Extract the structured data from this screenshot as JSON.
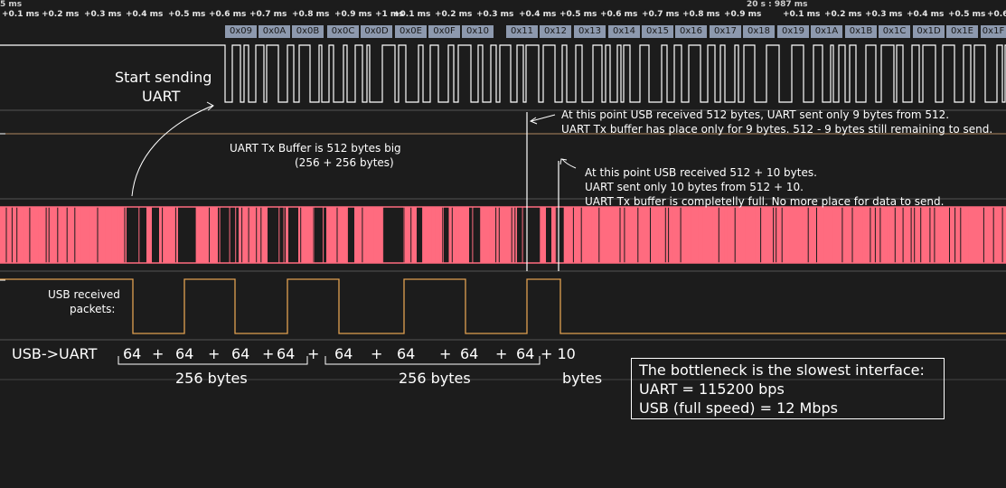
{
  "ruler": {
    "top_left": "5 ms",
    "top_mid": "20 s : 987 ms",
    "ticks": [
      "+0.1 ms",
      "+0.2 ms",
      "+0.3 ms",
      "+0.4 ms",
      "+0.5 ms",
      "+0.6 ms",
      "+0.7 ms",
      "+0.8 ms",
      "+0.9 ms",
      "+1 ms",
      "+0.1 ms",
      "+0.2 ms",
      "+0.3 ms",
      "+0.4 ms",
      "+0.5 ms",
      "+0.6 ms",
      "+0.7 ms",
      "+0.8 ms",
      "+0.9 ms",
      "+0.1 ms",
      "+0.2 ms",
      "+0.3 ms",
      "+0.4 ms",
      "+0.5 ms",
      "+0.6 m"
    ]
  },
  "hex_bytes": [
    "0x09",
    "0x0A",
    "0x0B",
    "0x0C",
    "0x0D",
    "0x0E",
    "0x0F",
    "0x10",
    "0x11",
    "0x12",
    "0x13",
    "0x14",
    "0x15",
    "0x16",
    "0x17",
    "0x18",
    "0x19",
    "0x1A",
    "0x1B",
    "0x1C",
    "0x1D",
    "0x1E",
    "0x1F"
  ],
  "annotations": {
    "start_sending_1": "Start sending",
    "start_sending_2": "UART",
    "buffer_size_1": "UART Tx Buffer is 512 bytes big",
    "buffer_size_2": "(256 + 256 bytes)",
    "point1_line1": "At this point USB received 512 bytes, UART sent only 9 bytes from 512.",
    "point1_line2": "UART Tx buffer has place only for 9 bytes. 512 - 9 bytes still remaining to send.",
    "point2_line1": "At this point USB received 512 + 10 bytes.",
    "point2_line2": "UART sent only 10 bytes from 512 + 10.",
    "point2_line3": "UART Tx buffer is completelly full. No more place for data to send.",
    "usb_received_1": "USB received",
    "usb_received_2": "packets:"
  },
  "usb_uart": {
    "label": "USB->UART",
    "sequence": [
      "64",
      "+",
      "64",
      "+",
      "64",
      "+",
      "64",
      "+",
      "64",
      "+",
      "64",
      "+",
      "64",
      "+",
      "64",
      "+ 10"
    ],
    "group1": "256 bytes",
    "group2": "256 bytes",
    "group3": "bytes"
  },
  "bottleneck": {
    "line1": "The bottleneck is the slowest interface:",
    "line2": "UART = 115200 bps",
    "line3": "USB (full speed) = 12 Mbps"
  },
  "colors": {
    "background": "#1c1c1c",
    "hex_label_bg": "#8d99ae",
    "usb_signal": "#ff6b7f",
    "packet_signal": "#e0a050",
    "uart_signal": "#ffffff"
  }
}
